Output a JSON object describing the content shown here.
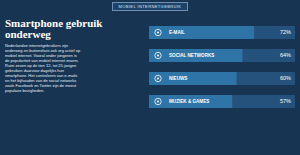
{
  "chart_data": {
    "type": "bar",
    "orientation": "horizontal",
    "title": "Smartphone gebruik onderweg",
    "subtitle": "MOBIEL INTERNETGEBRUIK",
    "annotations": [
      "Nederlandse internetgebruikers zijn onderweg en buitenshuis ook erg actief op mobiel internet. Vooral onder jongeren is de populariteit van mobiel internet enorm. Ruim zeven op de tien 12- tot 25-jarigen gebruiken daarvoor dagelijks hun smartphone. Het controleren van e-mails en het bijhouden van de social networks zoals Facebook en Twitter zijn de meest populaire bezigheden."
    ],
    "categories": [
      "E-MAIL",
      "SOCIAL NETWORKS",
      "NIEUWS",
      "MUZIEK & GAMES"
    ],
    "values": [
      72,
      64,
      60,
      57
    ],
    "value_labels": [
      "72%",
      "64%",
      "60%",
      "57%"
    ],
    "xlim": [
      0,
      100
    ],
    "color": "#2f74a6",
    "data_labels": true,
    "tick_labels": false
  }
}
